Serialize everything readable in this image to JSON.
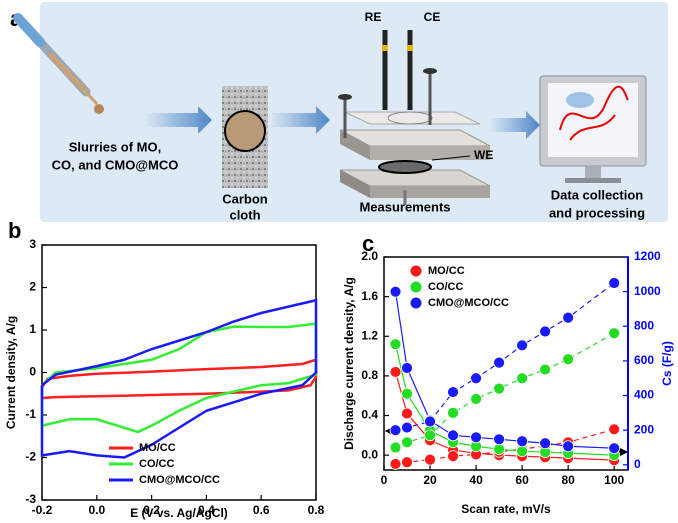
{
  "panel_a": {
    "label": "a",
    "slurry_label": [
      "Slurries of MO,",
      "CO, and CMO@MCO"
    ],
    "substrate_label": [
      "Carbon",
      "cloth"
    ],
    "electrodes": [
      "RE",
      "CE",
      "WE"
    ],
    "measurement_label": "Measurements",
    "output_label": [
      "Data collection",
      "and processing"
    ]
  },
  "chart_data": [
    {
      "type": "line",
      "panel_label": "b",
      "xlabel": "E (V vs. Ag/AgCl)",
      "ylabel": "Current density, A/g",
      "xlim": [
        -0.2,
        0.8
      ],
      "xticks": [
        -0.2,
        {
          "value": 0,
          "label": "0.0"
        },
        0.2,
        0.4,
        0.6,
        0.8
      ],
      "ylim": [
        -3,
        3
      ],
      "yticks": [
        -3,
        -2,
        -1,
        0,
        1,
        2,
        3
      ],
      "legend": "lower center",
      "series": [
        {
          "name": "MO/CC",
          "color": "#ff1f1f",
          "x": [
            -0.2,
            -0.18,
            -0.1,
            0,
            0.2,
            0.4,
            0.6,
            0.75,
            0.8,
            0.8,
            0.78,
            0.7,
            0.6,
            0.4,
            0.2,
            0,
            -0.15,
            -0.2,
            -0.2
          ],
          "values": [
            -0.35,
            -0.15,
            -0.08,
            -0.03,
            0.02,
            0.08,
            0.13,
            0.2,
            0.3,
            -0.1,
            -0.3,
            -0.42,
            -0.45,
            -0.5,
            -0.53,
            -0.56,
            -0.58,
            -0.6,
            -0.35
          ]
        },
        {
          "name": "CO/CC",
          "color": "#33ee33",
          "x": [
            -0.2,
            -0.15,
            0,
            0.2,
            0.3,
            0.4,
            0.5,
            0.6,
            0.7,
            0.8,
            0.8,
            0.7,
            0.6,
            0.4,
            0.3,
            0.2,
            0.15,
            0.1,
            0,
            -0.1,
            -0.2,
            -0.2
          ],
          "values": [
            -0.3,
            0,
            0.1,
            0.3,
            0.55,
            0.95,
            1.08,
            1.07,
            1.07,
            1.15,
            -0.05,
            -0.25,
            -0.3,
            -0.6,
            -0.9,
            -1.25,
            -1.4,
            -1.3,
            -1.1,
            -1.1,
            -1.25,
            -0.3
          ]
        },
        {
          "name": "CMO@MCO/CC",
          "color": "#1a1aff",
          "x": [
            -0.2,
            -0.15,
            0,
            0.1,
            0.2,
            0.3,
            0.4,
            0.5,
            0.6,
            0.7,
            0.8,
            0.8,
            0.75,
            0.6,
            0.4,
            0.3,
            0.2,
            0.1,
            0,
            -0.1,
            -0.2,
            -0.2
          ],
          "values": [
            -0.3,
            -0.05,
            0.15,
            0.3,
            0.55,
            0.75,
            0.95,
            1.2,
            1.4,
            1.55,
            1.7,
            0,
            -0.3,
            -0.5,
            -0.9,
            -1.3,
            -1.7,
            -2.0,
            -1.95,
            -1.85,
            -1.95,
            -0.3
          ]
        }
      ]
    },
    {
      "type": "line",
      "panel_label": "c",
      "xlabel": "Scan rate, mV/s",
      "ylabel": "Discharge current density, A/g",
      "y2label": "Cs (F/g)",
      "y2_color": "#0000ff",
      "x": [
        5,
        10,
        20,
        30,
        40,
        50,
        60,
        70,
        80,
        100
      ],
      "xlim": [
        0,
        106
      ],
      "xticks": [
        0,
        20,
        40,
        60,
        80,
        100
      ],
      "ylim": [
        -0.15,
        2.0
      ],
      "yticks": [
        {
          "value": 0,
          "label": "0.0"
        },
        0.4,
        0.8,
        1.2,
        1.6,
        {
          "value": 2,
          "label": "2.0"
        }
      ],
      "y2lim": [
        -30,
        1200
      ],
      "y2ticks": [
        0,
        200,
        400,
        600,
        800,
        1000,
        1200
      ],
      "legend": "upper left",
      "series": [
        {
          "name": "MO/CC",
          "color": "#ff1a1a",
          "values": [
            0.84,
            0.42,
            0.15,
            0.05,
            0.02,
            0.0,
            -0.01,
            -0.02,
            -0.03,
            -0.05
          ],
          "y2_values": [
            5,
            15,
            30,
            50,
            60,
            75,
            90,
            110,
            130,
            205
          ]
        },
        {
          "name": "CO/CC",
          "color": "#22dd22",
          "values": [
            1.12,
            0.62,
            0.25,
            0.13,
            0.09,
            0.06,
            0.04,
            0.03,
            0.02,
            0.0
          ],
          "y2_values": [
            100,
            130,
            170,
            300,
            380,
            440,
            500,
            550,
            610,
            760
          ]
        },
        {
          "name": "CMO@MCO/CC",
          "color": "#1a1aff",
          "values": [
            1.65,
            0.88,
            0.35,
            0.2,
            0.18,
            0.16,
            0.14,
            0.12,
            0.09,
            0.07
          ],
          "y2_values": [
            200,
            215,
            250,
            420,
            500,
            590,
            690,
            770,
            850,
            1050
          ]
        }
      ]
    }
  ]
}
